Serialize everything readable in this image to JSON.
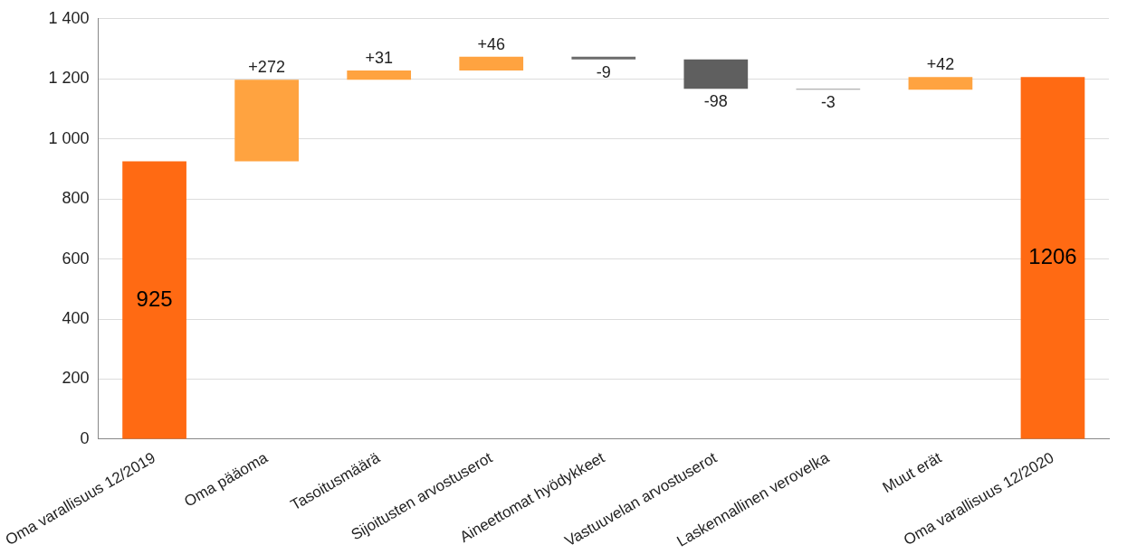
{
  "chart_data": {
    "type": "bar",
    "categories": [
      "Oma varallisuus 12/2019",
      "Oma pääoma",
      "Tasoitusmäärä",
      "Sijoitusten arvostuserot",
      "Aineettomat hyödykkeet",
      "Vastuuvelan arvostuserot",
      "Laskennallinen verovelka",
      "Muut erät",
      "Oma varallisuus 12/2020"
    ],
    "values": [
      925,
      272,
      31,
      46,
      -9,
      -98,
      -3,
      42,
      1206
    ],
    "base": [
      0,
      925,
      1197,
      1228,
      1274,
      1265,
      1167,
      1164,
      0
    ],
    "colors": [
      "#ff6a13",
      "#ffa340",
      "#ffa340",
      "#ffa340",
      "#6b6b6b",
      "#5f5f5f",
      "#9a9a9a",
      "#ffa340",
      "#ff6a13"
    ],
    "value_labels": [
      "925",
      "+272",
      "+31",
      "+46",
      "-9",
      "-98",
      "-3",
      "+42",
      "1206"
    ],
    "ylim": [
      0,
      1400
    ],
    "yticks": [
      0,
      200,
      400,
      600,
      800,
      {
        "value": 1000,
        "label": "1 000"
      },
      {
        "value": 1200,
        "label": "1 200"
      },
      {
        "value": 1400,
        "label": "1 400"
      }
    ],
    "grid": "y",
    "legend": false
  }
}
